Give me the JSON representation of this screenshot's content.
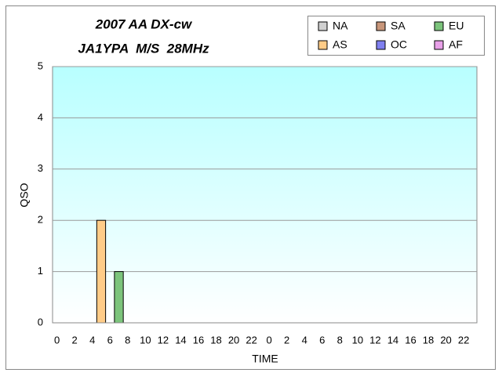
{
  "chart_data": {
    "type": "stacked-bar",
    "title": "2007 AA DX-cw",
    "subtitle": "JA1YPA  M/S  28MHz",
    "x_label": "TIME",
    "y_label": "QSO",
    "categories": [
      "0",
      null,
      "2",
      null,
      "4",
      null,
      "6",
      null,
      "8",
      null,
      "10",
      null,
      "12",
      null,
      "14",
      null,
      "16",
      null,
      "18",
      null,
      "20",
      null,
      "22",
      null,
      "0",
      null,
      "2",
      null,
      "4",
      null,
      "6",
      null,
      "8",
      null,
      "10",
      null,
      "12",
      null,
      "14",
      null,
      "16",
      null,
      "18",
      null,
      "20",
      null,
      "22",
      null
    ],
    "series": [
      {
        "name": "NA",
        "color": "#d0d0d0",
        "values": [
          0,
          0,
          0,
          0,
          0,
          0,
          0,
          0,
          0,
          0,
          0,
          0,
          0,
          0,
          0,
          0,
          0,
          0,
          0,
          0,
          0,
          0,
          0,
          0,
          0,
          0,
          0,
          0,
          0,
          0,
          0,
          0,
          0,
          0,
          0,
          0,
          0,
          0,
          0,
          0,
          0,
          0,
          0,
          0,
          0,
          0,
          0,
          0
        ]
      },
      {
        "name": "SA",
        "color": "#c8967a",
        "values": [
          0,
          0,
          0,
          0,
          0,
          0,
          0,
          0,
          0,
          0,
          0,
          0,
          0,
          0,
          0,
          0,
          0,
          0,
          0,
          0,
          0,
          0,
          0,
          0,
          0,
          0,
          0,
          0,
          0,
          0,
          0,
          0,
          0,
          0,
          0,
          0,
          0,
          0,
          0,
          0,
          0,
          0,
          0,
          0,
          0,
          0,
          0,
          0
        ]
      },
      {
        "name": "EU",
        "color": "#7cc47c",
        "values": [
          0,
          0,
          0,
          0,
          0,
          0,
          0,
          1,
          0,
          0,
          0,
          0,
          0,
          0,
          0,
          0,
          0,
          0,
          0,
          0,
          0,
          0,
          0,
          0,
          0,
          0,
          0,
          0,
          0,
          0,
          0,
          0,
          0,
          0,
          0,
          0,
          0,
          0,
          0,
          0,
          0,
          0,
          0,
          0,
          0,
          0,
          0,
          0
        ]
      },
      {
        "name": "AS",
        "color": "#ffcc88",
        "values": [
          0,
          0,
          0,
          0,
          0,
          2,
          0,
          0,
          0,
          0,
          0,
          0,
          0,
          0,
          0,
          0,
          0,
          0,
          0,
          0,
          0,
          0,
          0,
          0,
          0,
          0,
          0,
          0,
          0,
          0,
          0,
          0,
          0,
          0,
          0,
          0,
          0,
          0,
          0,
          0,
          0,
          0,
          0,
          0,
          0,
          0,
          0,
          0
        ]
      },
      {
        "name": "OC",
        "color": "#8080f0",
        "values": [
          0,
          0,
          0,
          0,
          0,
          0,
          0,
          0,
          0,
          0,
          0,
          0,
          0,
          0,
          0,
          0,
          0,
          0,
          0,
          0,
          0,
          0,
          0,
          0,
          0,
          0,
          0,
          0,
          0,
          0,
          0,
          0,
          0,
          0,
          0,
          0,
          0,
          0,
          0,
          0,
          0,
          0,
          0,
          0,
          0,
          0,
          0,
          0
        ]
      },
      {
        "name": "AF",
        "color": "#e8a0e8",
        "values": [
          0,
          0,
          0,
          0,
          0,
          0,
          0,
          0,
          0,
          0,
          0,
          0,
          0,
          0,
          0,
          0,
          0,
          0,
          0,
          0,
          0,
          0,
          0,
          0,
          0,
          0,
          0,
          0,
          0,
          0,
          0,
          0,
          0,
          0,
          0,
          0,
          0,
          0,
          0,
          0,
          0,
          0,
          0,
          0,
          0,
          0,
          0,
          0
        ]
      }
    ],
    "ylim": [
      0,
      5
    ],
    "yticks": [
      0,
      1,
      2,
      3,
      4,
      5
    ],
    "grid": true
  }
}
